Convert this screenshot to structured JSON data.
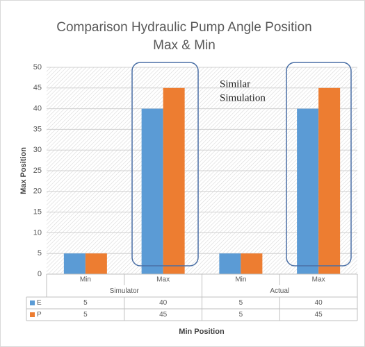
{
  "chart_data": {
    "type": "bar",
    "title": [
      "Comparison Hydraulic Pump Angle Position",
      "Max & Min"
    ],
    "y_label": "Max Position",
    "x_label": "Min Position",
    "annotation": [
      "Similar",
      "Simulation"
    ],
    "categories": [
      "Min",
      "Max",
      "Min",
      "Max"
    ],
    "category_groups": [
      "Simulator",
      "Actual"
    ],
    "series": [
      {
        "name": "E",
        "color": "#5b9bd5",
        "values": [
          5,
          40,
          5,
          40
        ]
      },
      {
        "name": "P",
        "color": "#ed7d31",
        "values": [
          5,
          45,
          5,
          45
        ]
      }
    ],
    "ylim": [
      0,
      50
    ],
    "yticks": [
      0,
      5,
      10,
      15,
      20,
      25,
      30,
      35,
      40,
      45,
      50
    ],
    "grid": true
  }
}
